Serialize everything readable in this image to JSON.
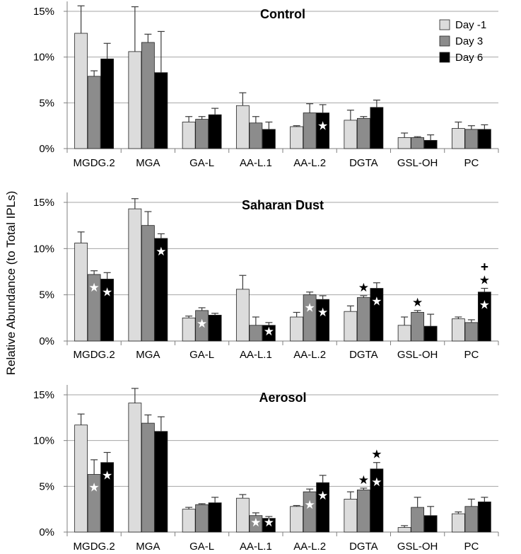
{
  "figure": {
    "ylabel": "Relative Abundance (to Total IPLs)"
  },
  "colors": {
    "day_minus1": "#dcdcdc",
    "day3": "#8c8c8c",
    "day6": "#000000",
    "grid": "#a6a6a6",
    "axis": "#7f7f7f",
    "error": "#3a3a3a"
  },
  "chart_data": [
    {
      "type": "bar",
      "title": "Control",
      "xlabel": "",
      "ylabel": "Relative Abundance (to Total IPLs)",
      "ylim": [
        0,
        15
      ],
      "yticks": [
        0,
        5,
        10,
        15
      ],
      "ytick_labels": [
        "0%",
        "5%",
        "10%",
        "15%"
      ],
      "grid": true,
      "legend_position": "top-right",
      "categories": [
        "MGDG.2",
        "MGA",
        "GA-L",
        "AA-L.1",
        "AA-L.2",
        "DGTA",
        "GSL-OH",
        "PC"
      ],
      "series": [
        {
          "name": "Day -1",
          "values": [
            12.6,
            10.6,
            2.9,
            4.7,
            2.4,
            3.1,
            1.2,
            2.2
          ],
          "errors": [
            3.0,
            4.9,
            0.6,
            1.4,
            0.1,
            1.1,
            0.5,
            0.7
          ]
        },
        {
          "name": "Day 3",
          "values": [
            7.9,
            11.6,
            3.2,
            2.8,
            3.9,
            3.3,
            1.2,
            2.1
          ],
          "errors": [
            0.6,
            0.9,
            0.3,
            0.7,
            1.0,
            0.2,
            0.1,
            0.4
          ]
        },
        {
          "name": "Day 6",
          "values": [
            9.8,
            8.3,
            3.7,
            2.1,
            3.9,
            4.5,
            0.9,
            2.1
          ],
          "errors": [
            1.7,
            4.5,
            0.7,
            0.8,
            0.9,
            0.8,
            0.6,
            0.5
          ]
        }
      ],
      "markers": [
        {
          "category": "AA-L.2",
          "series": "Day 6",
          "symbols": [
            "★"
          ],
          "inside": true
        }
      ]
    },
    {
      "type": "bar",
      "title": "Saharan Dust",
      "xlabel": "",
      "ylabel": "Relative Abundance (to Total IPLs)",
      "ylim": [
        0,
        15
      ],
      "yticks": [
        0,
        5,
        10,
        15
      ],
      "ytick_labels": [
        "0%",
        "5%",
        "10%",
        "15%"
      ],
      "grid": true,
      "categories": [
        "MGDG.2",
        "MGA",
        "GA-L",
        "AA-L.1",
        "AA-L.2",
        "DGTA",
        "GSL-OH",
        "PC"
      ],
      "series": [
        {
          "name": "Day -1",
          "values": [
            10.6,
            14.3,
            2.5,
            5.6,
            2.6,
            3.2,
            1.7,
            2.4
          ],
          "errors": [
            1.2,
            1.1,
            0.2,
            1.5,
            0.5,
            0.6,
            0.9,
            0.2
          ]
        },
        {
          "name": "Day 3",
          "values": [
            7.2,
            12.5,
            3.3,
            1.7,
            5.0,
            4.7,
            3.1,
            2.0
          ],
          "errors": [
            0.4,
            1.5,
            0.3,
            0.9,
            0.3,
            0.2,
            0.2,
            0.3
          ]
        },
        {
          "name": "Day 6",
          "values": [
            6.7,
            11.1,
            2.8,
            1.7,
            4.5,
            5.7,
            1.6,
            5.3
          ],
          "errors": [
            0.7,
            0.5,
            0.2,
            0.3,
            0.4,
            0.6,
            1.3,
            0.4
          ]
        }
      ],
      "markers": [
        {
          "category": "MGDG.2",
          "series": "Day 3",
          "symbols": [
            "★"
          ],
          "inside": true
        },
        {
          "category": "MGDG.2",
          "series": "Day 6",
          "symbols": [
            "★"
          ],
          "inside": true
        },
        {
          "category": "MGA",
          "series": "Day 6",
          "symbols": [
            "★"
          ],
          "inside": true
        },
        {
          "category": "GA-L",
          "series": "Day 3",
          "symbols": [
            "★"
          ],
          "inside": true
        },
        {
          "category": "AA-L.1",
          "series": "Day 6",
          "symbols": [
            "★"
          ],
          "inside": true
        },
        {
          "category": "AA-L.2",
          "series": "Day 3",
          "symbols": [
            "★"
          ],
          "inside": true
        },
        {
          "category": "AA-L.2",
          "series": "Day 6",
          "symbols": [
            "★"
          ],
          "inside": true
        },
        {
          "category": "DGTA",
          "series": "Day 3",
          "symbols": [
            "★"
          ],
          "inside": false
        },
        {
          "category": "DGTA",
          "series": "Day 6",
          "symbols": [
            "★"
          ],
          "inside": true
        },
        {
          "category": "GSL-OH",
          "series": "Day 3",
          "symbols": [
            "★"
          ],
          "inside": false
        },
        {
          "category": "PC",
          "series": "Day 6",
          "symbols": [
            "★"
          ],
          "inside": true
        },
        {
          "category": "PC",
          "series": "Day 6",
          "symbols": [
            "+",
            "★"
          ],
          "inside": false
        }
      ]
    },
    {
      "type": "bar",
      "title": "Aerosol",
      "xlabel": "",
      "ylabel": "Relative Abundance (to Total IPLs)",
      "ylim": [
        0,
        15
      ],
      "yticks": [
        0,
        5,
        10,
        15
      ],
      "ytick_labels": [
        "0%",
        "5%",
        "10%",
        "15%"
      ],
      "grid": true,
      "categories": [
        "MGDG.2",
        "MGA",
        "GA-L",
        "AA-L.1",
        "AA-L.2",
        "DGTA",
        "GSL-OH",
        "PC"
      ],
      "series": [
        {
          "name": "Day -1",
          "values": [
            11.7,
            14.1,
            2.5,
            3.7,
            2.8,
            3.6,
            0.5,
            2.0
          ],
          "errors": [
            1.2,
            1.6,
            0.2,
            0.4,
            0.1,
            0.8,
            0.2,
            0.2
          ]
        },
        {
          "name": "Day 3",
          "values": [
            6.3,
            11.9,
            3.0,
            1.8,
            4.4,
            4.6,
            2.7,
            2.8
          ],
          "errors": [
            1.6,
            0.9,
            0.1,
            0.3,
            0.3,
            0.2,
            1.1,
            0.8
          ]
        },
        {
          "name": "Day 6",
          "values": [
            7.6,
            11.0,
            3.2,
            1.5,
            5.4,
            6.9,
            1.8,
            3.3
          ],
          "errors": [
            1.1,
            1.6,
            0.6,
            0.2,
            0.8,
            0.7,
            1.0,
            0.5
          ]
        }
      ],
      "markers": [
        {
          "category": "MGDG.2",
          "series": "Day 3",
          "symbols": [
            "★"
          ],
          "inside": true
        },
        {
          "category": "MGDG.2",
          "series": "Day 6",
          "symbols": [
            "★"
          ],
          "inside": true
        },
        {
          "category": "AA-L.1",
          "series": "Day 3",
          "symbols": [
            "★"
          ],
          "inside": true
        },
        {
          "category": "AA-L.1",
          "series": "Day 6",
          "symbols": [
            "★"
          ],
          "inside": true
        },
        {
          "category": "AA-L.2",
          "series": "Day 3",
          "symbols": [
            "★"
          ],
          "inside": true
        },
        {
          "category": "AA-L.2",
          "series": "Day 6",
          "symbols": [
            "★"
          ],
          "inside": true
        },
        {
          "category": "DGTA",
          "series": "Day 3",
          "symbols": [
            "★"
          ],
          "inside": false
        },
        {
          "category": "DGTA",
          "series": "Day 6",
          "symbols": [
            "★"
          ],
          "inside": true
        },
        {
          "category": "DGTA",
          "series": "Day 6",
          "symbols": [
            "★"
          ],
          "inside": false
        }
      ]
    }
  ]
}
